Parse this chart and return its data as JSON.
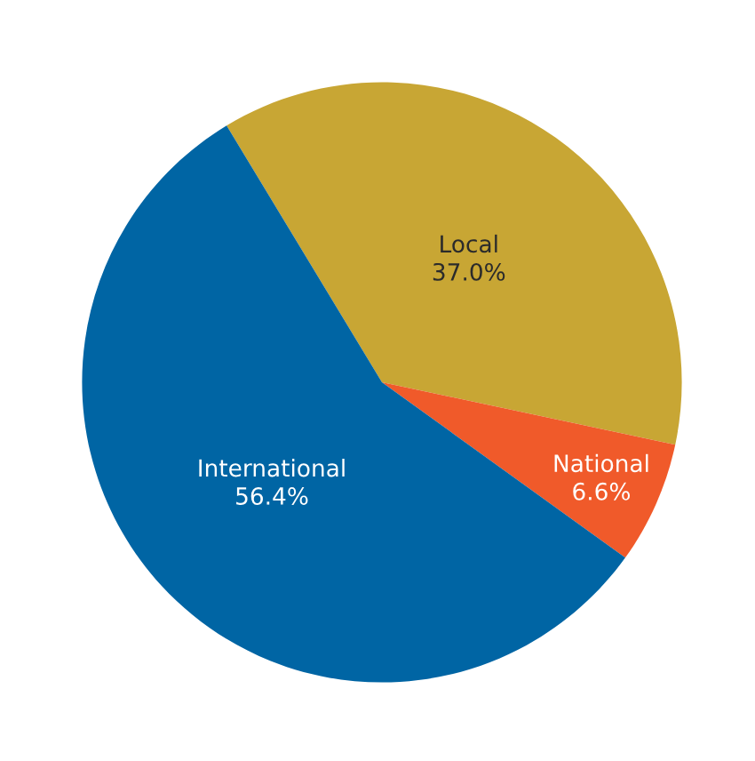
{
  "chart_data": {
    "type": "pie",
    "categories": [
      "Local",
      "National",
      "International"
    ],
    "values": [
      37.0,
      6.6,
      56.4
    ],
    "colors": [
      "#c8a634",
      "#f05a2a",
      "#0065a4"
    ],
    "value_labels": [
      "37.0%",
      "6.6%",
      "56.4%"
    ]
  }
}
